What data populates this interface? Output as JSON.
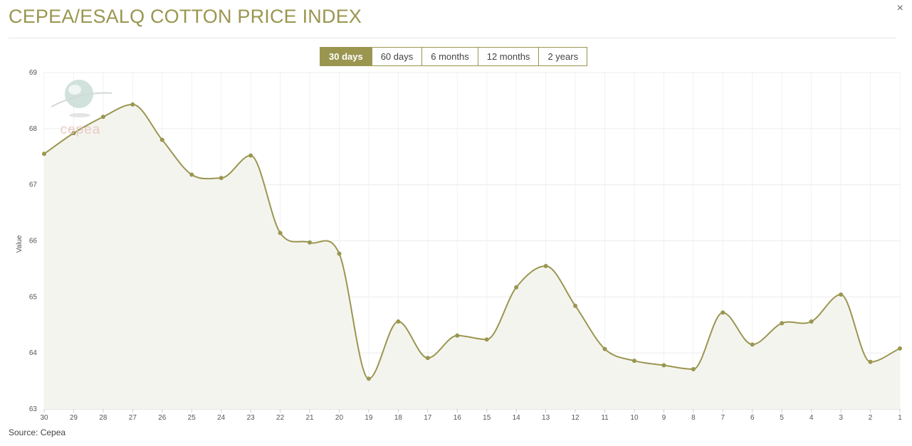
{
  "header": {
    "title": "CEPEA/ESALQ COTTON PRICE INDEX",
    "close_icon": "×"
  },
  "range_buttons": [
    {
      "label": "30 days",
      "active": true
    },
    {
      "label": "60 days",
      "active": false
    },
    {
      "label": "6 months",
      "active": false
    },
    {
      "label": "12 months",
      "active": false
    },
    {
      "label": "2 years",
      "active": false
    }
  ],
  "watermark": {
    "text": "cepea",
    "icon": "globe-logo-icon"
  },
  "footer": {
    "source": "Source: Cepea"
  },
  "colors": {
    "accent": "#9a9650",
    "area": "#f4f4ef",
    "watermark": "#e8c3bd"
  },
  "chart_data": {
    "type": "area",
    "title": "CEPEA/ESALQ COTTON PRICE INDEX",
    "xlabel": "",
    "ylabel": "Value",
    "ylim": [
      63,
      69
    ],
    "yticks": [
      "63",
      "64",
      "65",
      "66",
      "67",
      "68",
      "69"
    ],
    "grid": true,
    "categories": [
      "30",
      "29",
      "28",
      "27",
      "26",
      "25",
      "24",
      "23",
      "22",
      "21",
      "20",
      "19",
      "18",
      "17",
      "16",
      "15",
      "14",
      "13",
      "12",
      "11",
      "10",
      "9",
      "8",
      "7",
      "6",
      "5",
      "4",
      "3",
      "2",
      "1"
    ],
    "values": [
      67.55,
      67.92,
      68.21,
      68.43,
      67.8,
      67.18,
      67.12,
      67.52,
      66.14,
      65.97,
      65.77,
      63.54,
      64.56,
      63.91,
      64.31,
      64.24,
      65.17,
      65.55,
      64.84,
      64.07,
      63.86,
      63.78,
      63.71,
      64.72,
      64.15,
      64.53,
      64.56,
      65.04,
      63.84,
      64.08
    ]
  }
}
